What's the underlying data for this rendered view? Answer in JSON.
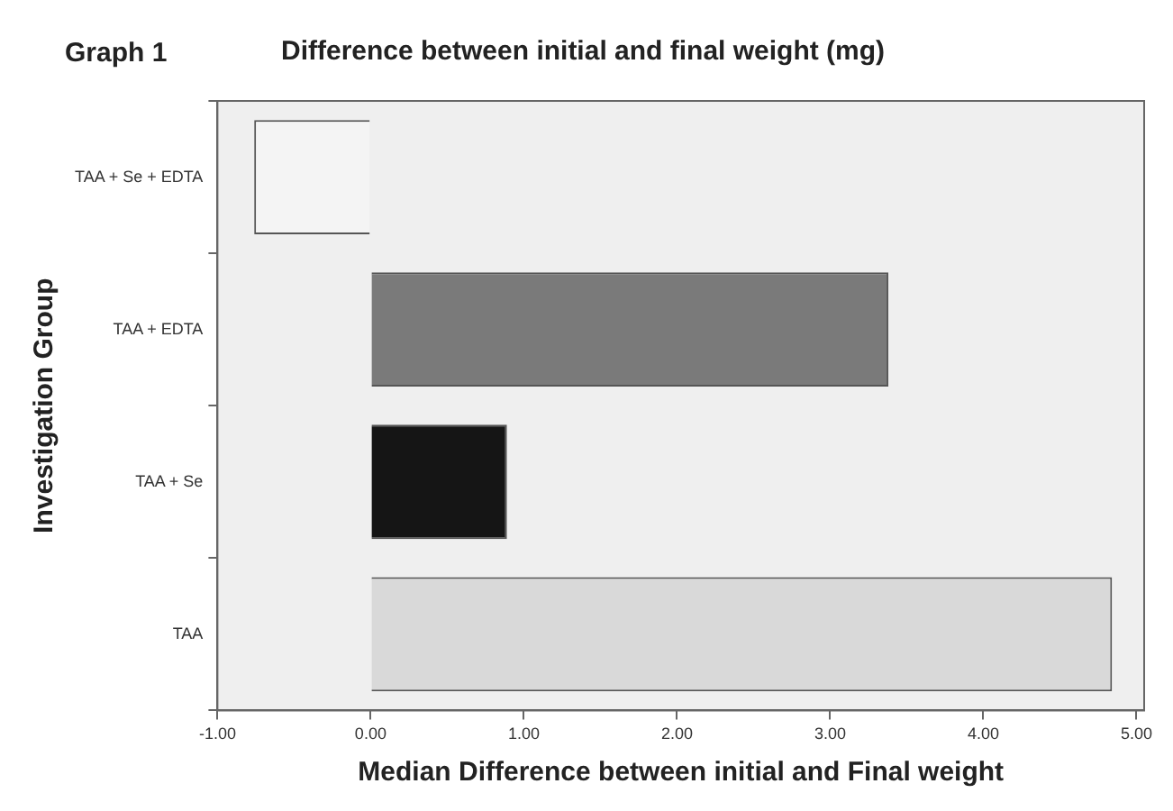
{
  "chart_data": {
    "type": "bar",
    "orientation": "horizontal",
    "title": "Difference between initial and final weight (mg)",
    "annotations": [
      "Graph 1"
    ],
    "xlabel": "Median Difference between initial and Final weight",
    "ylabel": "Investigation Group",
    "categories": [
      "TAA + Se + EDTA",
      "TAA + EDTA",
      "TAA + Se",
      "TAA"
    ],
    "values": [
      -0.76,
      3.38,
      0.89,
      4.84
    ],
    "colors": [
      "#f4f4f4",
      "#7a7a7a",
      "#151515",
      "#d9d9d9"
    ],
    "xlim": [
      -1,
      5.05
    ],
    "xticks": [
      {
        "value": -1,
        "label": "-1.00"
      },
      {
        "value": 0,
        "label": "0.00"
      },
      {
        "value": 1,
        "label": "1.00"
      },
      {
        "value": 2,
        "label": "2.00"
      },
      {
        "value": 3,
        "label": "3.00"
      },
      {
        "value": 4,
        "label": "4.00"
      },
      {
        "value": 5,
        "label": "5.00"
      }
    ],
    "grid": false,
    "legend": false
  }
}
